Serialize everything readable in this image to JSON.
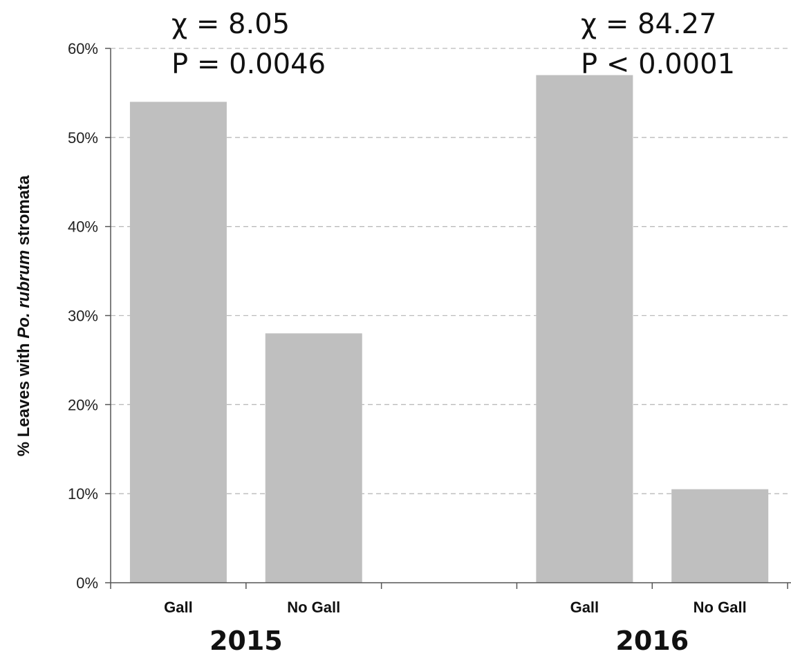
{
  "chart_data": {
    "type": "bar",
    "categories": [
      "Gall",
      "No Gall",
      "Gall",
      "No Gall"
    ],
    "groups": [
      {
        "label": "2015",
        "categories": [
          "Gall",
          "No Gall"
        ],
        "values": [
          54,
          28
        ]
      },
      {
        "label": "2016",
        "categories": [
          "Gall",
          "No Gall"
        ],
        "values": [
          57,
          10.5
        ]
      }
    ],
    "values": [
      54,
      28,
      57,
      10.5
    ],
    "ylabel": {
      "prefix": "% Leaves with ",
      "italic": "Po. rubrum",
      "suffix": " stromata"
    },
    "ylim": [
      0,
      60
    ],
    "yticks": [
      "0%",
      "10%",
      "20%",
      "30%",
      "40%",
      "50%",
      "60%"
    ],
    "grid": true,
    "bar_color": "#bfbfbf",
    "grid_color": "#bbbbbb",
    "annotations": [
      {
        "group": "2015",
        "chi": "χ = 8.05",
        "p": "P = 0.0046"
      },
      {
        "group": "2016",
        "chi": "χ = 84.27",
        "p": "P < 0.0001"
      }
    ]
  }
}
